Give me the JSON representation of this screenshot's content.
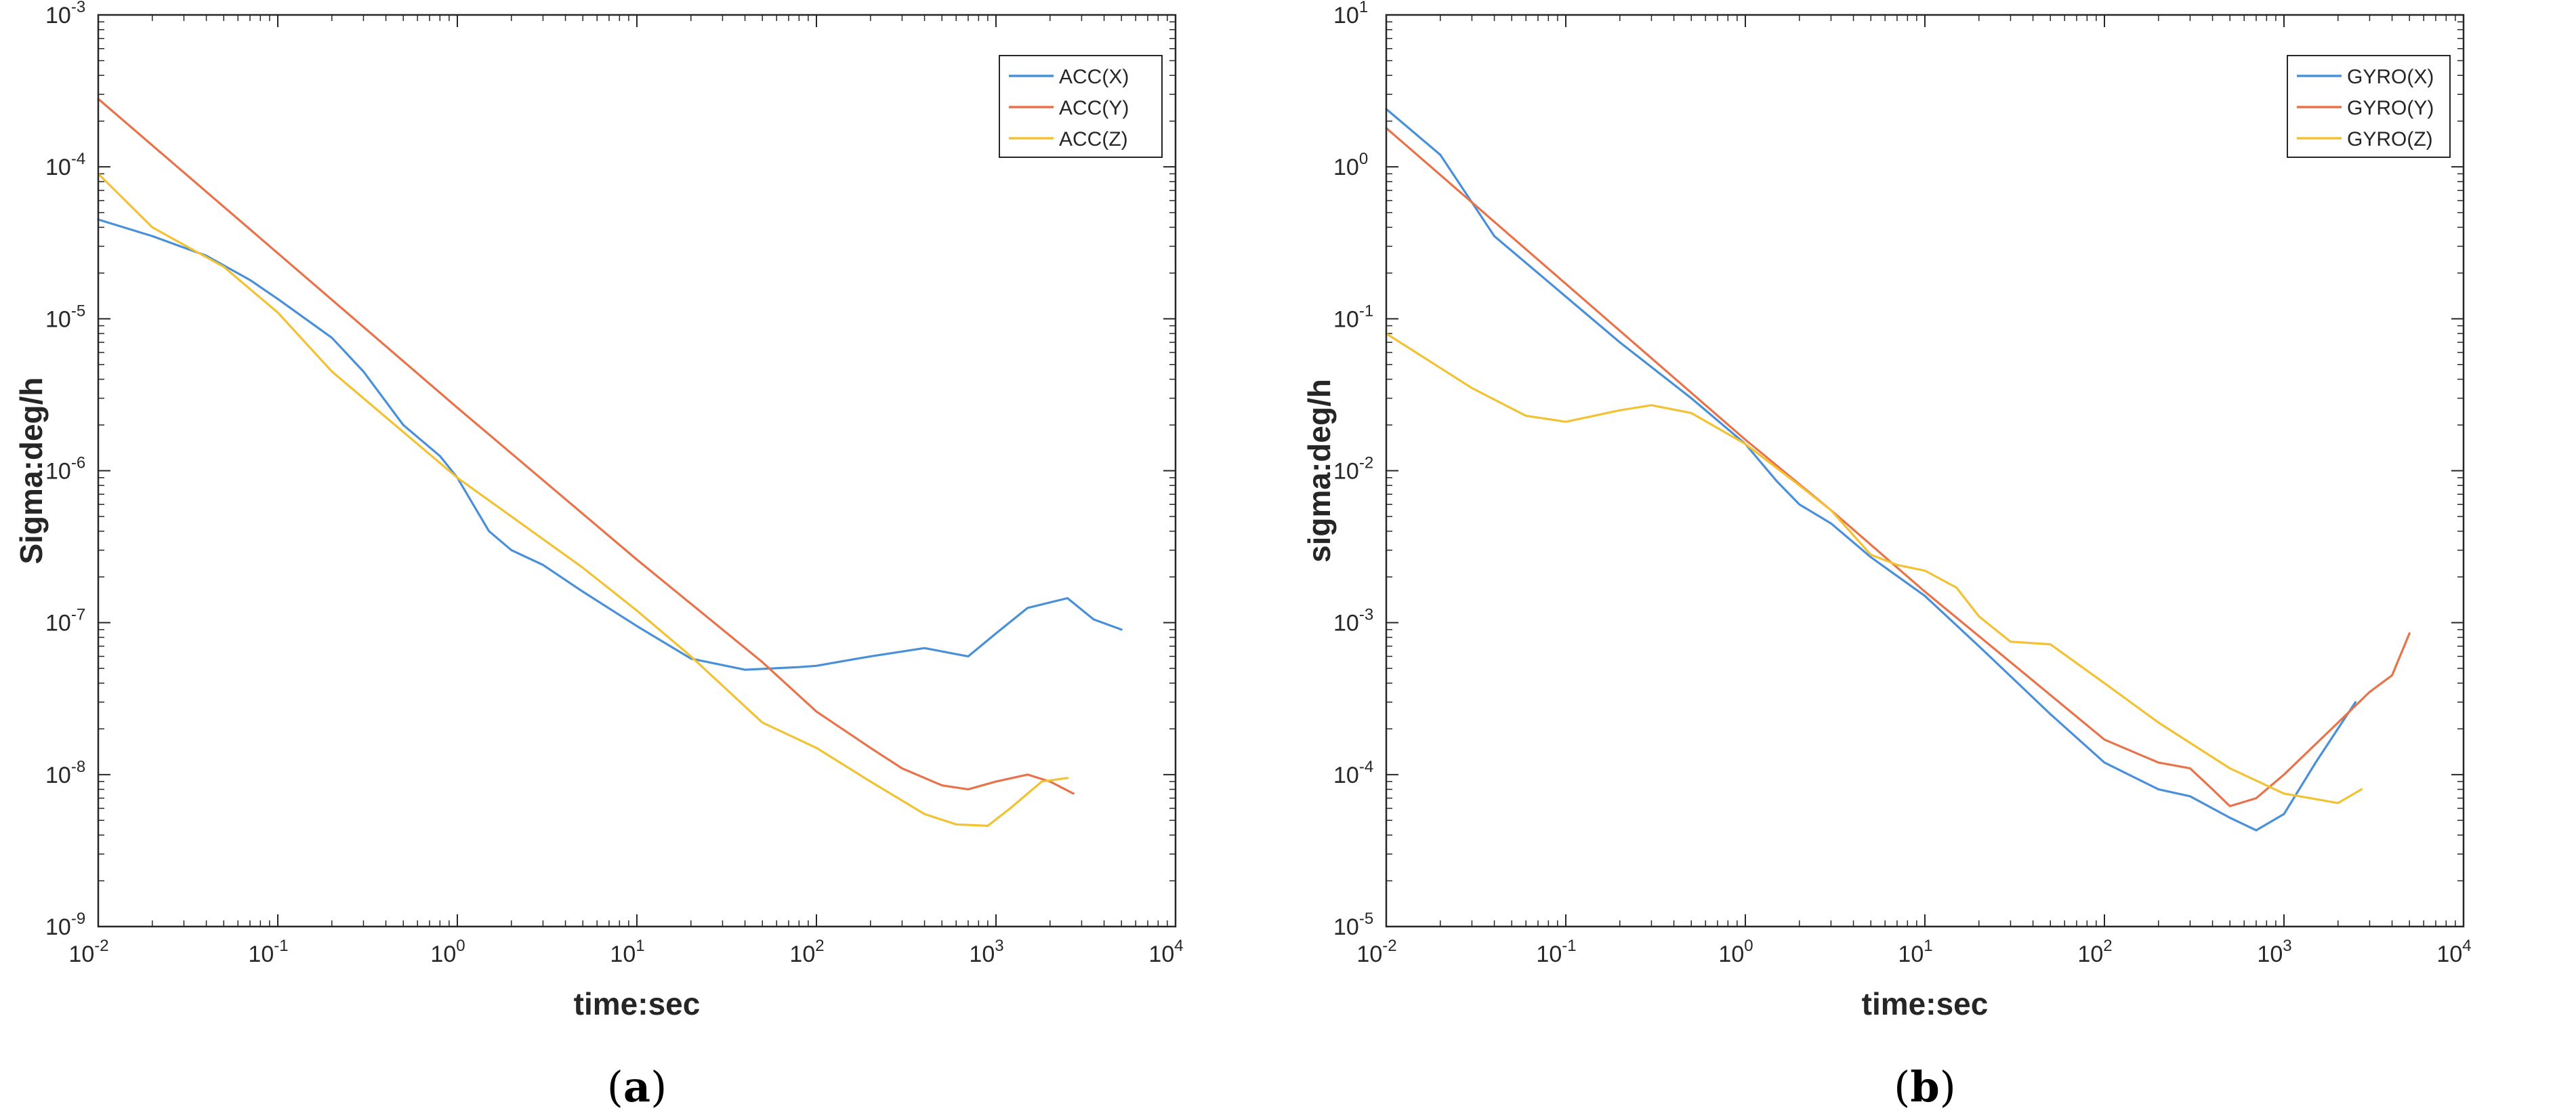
{
  "chart_data": [
    {
      "panel": "a",
      "caption_letter": "a",
      "type": "line",
      "scale": "log-log",
      "title": "",
      "xlabel": "time:sec",
      "ylabel": "Sigma:deg/h",
      "xlim": [
        0.01,
        10000
      ],
      "ylim": [
        1e-09,
        0.001
      ],
      "x_tick_exponents": [
        "-2",
        "-1",
        "0",
        "1",
        "2",
        "3",
        "4"
      ],
      "y_tick_exponents": [
        "-9",
        "-8",
        "-7",
        "-6",
        "-5",
        "-4",
        "-3"
      ],
      "tick_base": "10",
      "legend_location": "top-right",
      "series": [
        {
          "name": "ACC(X)",
          "color": "#4a90d9",
          "x": [
            0.01,
            0.02,
            0.04,
            0.07,
            0.1,
            0.2,
            0.3,
            0.5,
            0.8,
            1,
            1.5,
            2,
            3,
            5,
            10,
            20,
            40,
            80,
            100,
            200,
            400,
            700,
            1000,
            1500,
            2500,
            3500,
            5000
          ],
          "y": [
            4.5e-05,
            3.5e-05,
            2.6e-05,
            1.8e-05,
            1.35e-05,
            7.5e-06,
            4.5e-06,
            2e-06,
            1.25e-06,
            9e-07,
            4e-07,
            3e-07,
            2.4e-07,
            1.6e-07,
            9.5e-08,
            5.8e-08,
            4.9e-08,
            5.1e-08,
            5.2e-08,
            6e-08,
            6.8e-08,
            6e-08,
            8.5e-08,
            1.25e-07,
            1.45e-07,
            1.05e-07,
            9e-08
          ]
        },
        {
          "name": "ACC(Y)",
          "color": "#e8734a",
          "x": [
            0.01,
            0.1,
            1,
            10,
            50,
            100,
            200,
            300,
            500,
            700,
            1000,
            1500,
            2000,
            2700
          ],
          "y": [
            0.00028,
            2.7e-05,
            2.6e-06,
            2.6e-07,
            5.5e-08,
            2.6e-08,
            1.5e-08,
            1.1e-08,
            8.5e-09,
            8e-09,
            9e-09,
            1e-08,
            9e-09,
            7.5e-09
          ]
        },
        {
          "name": "ACC(Z)",
          "color": "#f2c233",
          "x": [
            0.01,
            0.02,
            0.05,
            0.1,
            0.2,
            0.5,
            1,
            2,
            5,
            10,
            20,
            50,
            100,
            200,
            400,
            600,
            900,
            1200,
            1800,
            2500
          ],
          "y": [
            9e-05,
            4e-05,
            2.2e-05,
            1.1e-05,
            4.5e-06,
            1.8e-06,
            9e-07,
            5e-07,
            2.3e-07,
            1.2e-07,
            6e-08,
            2.2e-08,
            1.5e-08,
            9e-09,
            5.5e-09,
            4.7e-09,
            4.6e-09,
            6e-09,
            9e-09,
            9.5e-09
          ]
        }
      ]
    },
    {
      "panel": "b",
      "caption_letter": "b",
      "type": "line",
      "scale": "log-log",
      "title": "",
      "xlabel": "time:sec",
      "ylabel": "sigma:deg/h",
      "xlim": [
        0.01,
        10000
      ],
      "ylim": [
        1e-05,
        10
      ],
      "x_tick_exponents": [
        "-2",
        "-1",
        "0",
        "1",
        "2",
        "3",
        "4"
      ],
      "y_tick_exponents": [
        "-5",
        "-4",
        "-3",
        "-2",
        "-1",
        "0",
        "1"
      ],
      "tick_base": "10",
      "legend_location": "top-right",
      "series": [
        {
          "name": "GYRO(X)",
          "color": "#4a90d9",
          "x": [
            0.01,
            0.02,
            0.04,
            0.07,
            0.1,
            0.2,
            0.5,
            1,
            1.5,
            2,
            3,
            5,
            10,
            20,
            50,
            100,
            200,
            300,
            500,
            700,
            1000,
            1500,
            2500
          ],
          "y": [
            2.4,
            1.2,
            0.35,
            0.2,
            0.14,
            0.07,
            0.03,
            0.015,
            0.0085,
            0.006,
            0.0045,
            0.0027,
            0.0015,
            0.0007,
            0.00025,
            0.00012,
            8e-05,
            7.2e-05,
            5.2e-05,
            4.3e-05,
            5.5e-05,
            0.00012,
            0.0003
          ]
        },
        {
          "name": "GYRO(Y)",
          "color": "#e8734a",
          "x": [
            0.01,
            0.1,
            1,
            3,
            10,
            30,
            100,
            200,
            300,
            400,
            500,
            700,
            1000,
            2000,
            3000,
            4000,
            5000
          ],
          "y": [
            1.8,
            0.17,
            0.016,
            0.0055,
            0.0016,
            0.00055,
            0.00017,
            0.00012,
            0.00011,
            8e-05,
            6.2e-05,
            7e-05,
            0.0001,
            0.00022,
            0.00035,
            0.00045,
            0.00085
          ]
        },
        {
          "name": "GYRO(Z)",
          "color": "#f2c233",
          "x": [
            0.01,
            0.03,
            0.06,
            0.1,
            0.2,
            0.3,
            0.5,
            1,
            2,
            3,
            5,
            7,
            10,
            15,
            20,
            30,
            50,
            100,
            200,
            500,
            1000,
            2000,
            2700
          ],
          "y": [
            0.08,
            0.035,
            0.023,
            0.021,
            0.025,
            0.027,
            0.024,
            0.015,
            0.008,
            0.0055,
            0.0028,
            0.0024,
            0.0022,
            0.0017,
            0.0011,
            0.00075,
            0.00072,
            0.0004,
            0.00022,
            0.00011,
            7.5e-05,
            6.5e-05,
            8e-05
          ]
        }
      ]
    }
  ]
}
